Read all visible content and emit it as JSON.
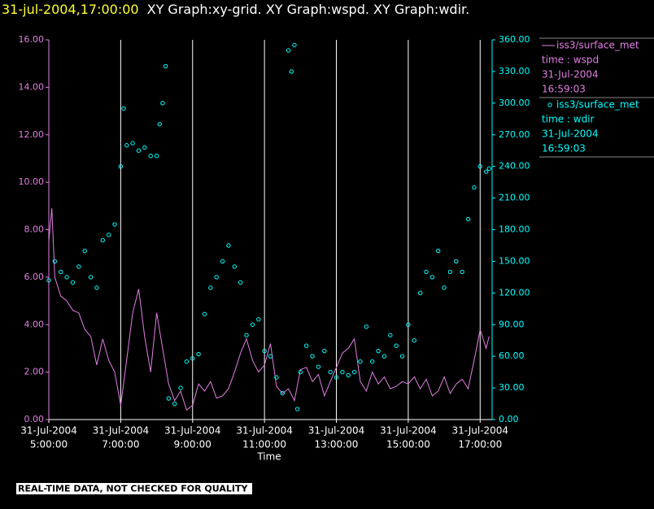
{
  "chart_data": {
    "type": "line-scatter",
    "title_time": "31-jul-2004,17:00:00",
    "title": "XY Graph:xy-grid.  XY Graph:wspd.  XY Graph:wdir.",
    "x_label": "Time",
    "note": "REAL-TIME DATA, NOT CHECKED FOR QUALITY",
    "grid": true,
    "xlim": [
      300,
      1040
    ],
    "xticks": [
      {
        "value": 300,
        "label": "5:00:00"
      },
      {
        "value": 420,
        "label": "7:00:00"
      },
      {
        "value": 540,
        "label": "9:00:00"
      },
      {
        "value": 660,
        "label": "11:00:00"
      },
      {
        "value": 780,
        "label": "13:00:00"
      },
      {
        "value": 900,
        "label": "15:00:00"
      },
      {
        "value": 1020,
        "label": "17:00:00"
      }
    ],
    "xtick_dates": [
      "31-Jul-2004",
      "31-Jul-2004",
      "31-Jul-2004",
      "31-Jul-2004",
      "31-Jul-2004",
      "31-Jul-2004",
      "31-Jul-2004"
    ],
    "ylim": [
      0,
      16
    ],
    "yticks": [
      {
        "value": 0,
        "label": "0.00"
      },
      {
        "value": 2,
        "label": "2.00"
      },
      {
        "value": 4,
        "label": "4.00"
      },
      {
        "value": 6,
        "label": "6.00"
      },
      {
        "value": 8,
        "label": "8.00"
      },
      {
        "value": 10,
        "label": "10.00"
      },
      {
        "value": 12,
        "label": "12.00"
      },
      {
        "value": 14,
        "label": "14.00"
      },
      {
        "value": 16,
        "label": "16.00"
      }
    ],
    "y2lim": [
      0,
      360
    ],
    "y2ticks": [
      {
        "value": 0,
        "label": "0.00"
      },
      {
        "value": 30,
        "label": "30.00"
      },
      {
        "value": 60,
        "label": "60.00"
      },
      {
        "value": 90,
        "label": "90.00"
      },
      {
        "value": 120,
        "label": "120.00"
      },
      {
        "value": 150,
        "label": "150.00"
      },
      {
        "value": 180,
        "label": "180.00"
      },
      {
        "value": 210,
        "label": "210.00"
      },
      {
        "value": 240,
        "label": "240.00"
      },
      {
        "value": 270,
        "label": "270.00"
      },
      {
        "value": 300,
        "label": "300.00"
      },
      {
        "value": 330,
        "label": "330.00"
      },
      {
        "value": 360,
        "label": "360.00"
      }
    ],
    "series": [
      {
        "name": "iss3/surface_met",
        "details": [
          "time : wspd",
          "31-Jul-2004",
          "16:59:03"
        ],
        "kind": "line",
        "color": "#e27fe2",
        "x": [
          300,
          305,
          310,
          320,
          330,
          340,
          350,
          360,
          370,
          380,
          390,
          400,
          410,
          420,
          430,
          440,
          450,
          460,
          470,
          480,
          490,
          500,
          510,
          520,
          530,
          540,
          550,
          560,
          570,
          580,
          590,
          600,
          610,
          620,
          630,
          640,
          650,
          660,
          670,
          680,
          690,
          700,
          710,
          720,
          730,
          740,
          750,
          760,
          770,
          780,
          790,
          800,
          810,
          820,
          830,
          840,
          850,
          860,
          870,
          880,
          890,
          900,
          910,
          920,
          930,
          940,
          950,
          960,
          970,
          980,
          990,
          1000,
          1010,
          1020,
          1030,
          1035
        ],
        "values": [
          7.5,
          8.9,
          6.0,
          5.2,
          5.0,
          4.6,
          4.5,
          3.8,
          3.5,
          2.3,
          3.4,
          2.5,
          2.0,
          0.6,
          2.5,
          4.5,
          5.5,
          3.5,
          2.0,
          4.5,
          3.0,
          1.5,
          0.8,
          1.2,
          0.4,
          0.6,
          1.5,
          1.2,
          1.6,
          0.9,
          1.0,
          1.3,
          2.0,
          2.8,
          3.4,
          2.5,
          2.0,
          2.3,
          3.2,
          1.4,
          1.1,
          1.3,
          0.8,
          2.1,
          2.2,
          1.6,
          1.9,
          1.0,
          1.6,
          2.2,
          2.8,
          3.0,
          3.4,
          1.6,
          1.2,
          2.0,
          1.5,
          1.8,
          1.3,
          1.4,
          1.6,
          1.5,
          1.8,
          1.3,
          1.7,
          1.0,
          1.2,
          1.8,
          1.1,
          1.5,
          1.7,
          1.3,
          2.5,
          3.8,
          3.0,
          3.5
        ]
      },
      {
        "name": "iss3/surface_met",
        "details": [
          "time : wdir",
          "31-Jul-2004",
          "16:59:03"
        ],
        "kind": "scatter",
        "axis": "y2",
        "color": "#00ffff",
        "x": [
          300,
          310,
          320,
          330,
          340,
          350,
          360,
          370,
          380,
          390,
          400,
          410,
          420,
          425,
          430,
          440,
          450,
          460,
          470,
          480,
          485,
          490,
          495,
          500,
          510,
          520,
          530,
          540,
          550,
          560,
          570,
          580,
          590,
          600,
          610,
          620,
          630,
          640,
          650,
          660,
          670,
          680,
          690,
          700,
          705,
          710,
          715,
          720,
          730,
          740,
          750,
          760,
          770,
          780,
          790,
          800,
          810,
          820,
          830,
          840,
          850,
          860,
          870,
          880,
          890,
          900,
          910,
          920,
          930,
          940,
          950,
          960,
          970,
          980,
          990,
          1000,
          1010,
          1020,
          1030,
          1035
        ],
        "values": [
          132,
          150,
          140,
          135,
          130,
          145,
          160,
          135,
          125,
          170,
          175,
          185,
          240,
          295,
          260,
          262,
          255,
          258,
          250,
          250,
          280,
          300,
          335,
          20,
          15,
          30,
          55,
          58,
          62,
          100,
          125,
          135,
          150,
          165,
          145,
          130,
          80,
          90,
          95,
          65,
          60,
          40,
          25,
          350,
          330,
          355,
          10,
          45,
          70,
          60,
          50,
          65,
          45,
          40,
          45,
          42,
          45,
          55,
          88,
          55,
          65,
          60,
          80,
          70,
          60,
          90,
          75,
          120,
          140,
          135,
          160,
          125,
          140,
          150,
          140,
          190,
          220,
          240,
          235,
          238
        ]
      }
    ]
  }
}
